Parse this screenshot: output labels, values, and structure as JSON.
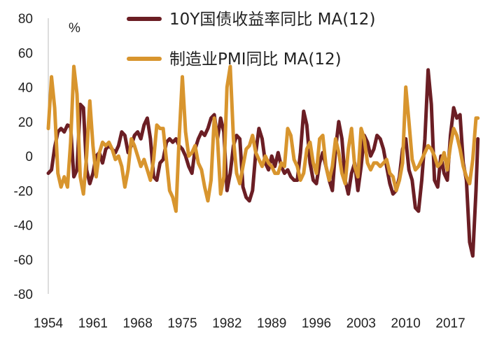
{
  "chart_data": {
    "type": "line",
    "unit": "%",
    "ylim": [
      -80,
      80
    ],
    "y_ticks": [
      80,
      60,
      40,
      20,
      0,
      -20,
      -40,
      -60,
      -80
    ],
    "xlim": [
      1954,
      2021
    ],
    "x_ticks": [
      "1954",
      "1961",
      "1968",
      "1975",
      "1982",
      "1989",
      "1996",
      "2003",
      "2010",
      "2017"
    ],
    "grid": false,
    "legend_position": "top",
    "series": [
      {
        "name": "10Y国债收益率同比 MA(12)",
        "color": "#6B1E24",
        "points": [
          [
            1954.0,
            -10
          ],
          [
            1954.5,
            -8
          ],
          [
            1955.0,
            5
          ],
          [
            1955.5,
            14
          ],
          [
            1956.0,
            16
          ],
          [
            1956.5,
            14
          ],
          [
            1957.0,
            18
          ],
          [
            1957.5,
            17
          ],
          [
            1958.0,
            -12
          ],
          [
            1958.5,
            -8
          ],
          [
            1959.0,
            30
          ],
          [
            1959.5,
            28
          ],
          [
            1960.0,
            -8
          ],
          [
            1960.5,
            -16
          ],
          [
            1961.0,
            -10
          ],
          [
            1961.5,
            0
          ],
          [
            1962.0,
            2
          ],
          [
            1962.5,
            -4
          ],
          [
            1963.0,
            4
          ],
          [
            1963.5,
            6
          ],
          [
            1964.0,
            4
          ],
          [
            1964.5,
            2
          ],
          [
            1965.0,
            6
          ],
          [
            1965.5,
            14
          ],
          [
            1966.0,
            12
          ],
          [
            1966.5,
            2
          ],
          [
            1967.0,
            6
          ],
          [
            1967.5,
            12
          ],
          [
            1968.0,
            14
          ],
          [
            1968.5,
            10
          ],
          [
            1969.0,
            18
          ],
          [
            1969.5,
            22
          ],
          [
            1970.0,
            10
          ],
          [
            1970.5,
            -12
          ],
          [
            1971.0,
            -14
          ],
          [
            1971.5,
            -4
          ],
          [
            1972.0,
            -2
          ],
          [
            1972.5,
            8
          ],
          [
            1973.0,
            10
          ],
          [
            1973.5,
            8
          ],
          [
            1974.0,
            10
          ],
          [
            1974.5,
            6
          ],
          [
            1975.0,
            4
          ],
          [
            1975.5,
            0
          ],
          [
            1976.0,
            -6
          ],
          [
            1976.5,
            -10
          ],
          [
            1977.0,
            4
          ],
          [
            1977.5,
            10
          ],
          [
            1978.0,
            14
          ],
          [
            1978.5,
            12
          ],
          [
            1979.0,
            16
          ],
          [
            1979.5,
            22
          ],
          [
            1980.0,
            24
          ],
          [
            1980.5,
            10
          ],
          [
            1981.0,
            22
          ],
          [
            1981.5,
            14
          ],
          [
            1982.0,
            -20
          ],
          [
            1982.5,
            -10
          ],
          [
            1983.0,
            6
          ],
          [
            1983.5,
            12
          ],
          [
            1984.0,
            10
          ],
          [
            1984.5,
            -18
          ],
          [
            1985.0,
            -24
          ],
          [
            1985.5,
            -26
          ],
          [
            1986.0,
            -20
          ],
          [
            1986.5,
            2
          ],
          [
            1987.0,
            16
          ],
          [
            1987.5,
            10
          ],
          [
            1988.0,
            -4
          ],
          [
            1988.5,
            -8
          ],
          [
            1989.0,
            0
          ],
          [
            1989.5,
            -6
          ],
          [
            1990.0,
            2
          ],
          [
            1990.5,
            -6
          ],
          [
            1991.0,
            -10
          ],
          [
            1991.5,
            -8
          ],
          [
            1992.0,
            -12
          ],
          [
            1992.5,
            -14
          ],
          [
            1993.0,
            -14
          ],
          [
            1993.5,
            2
          ],
          [
            1994.0,
            26
          ],
          [
            1994.5,
            18
          ],
          [
            1995.0,
            -4
          ],
          [
            1995.5,
            -14
          ],
          [
            1996.0,
            -16
          ],
          [
            1996.5,
            -4
          ],
          [
            1997.0,
            2
          ],
          [
            1997.5,
            -6
          ],
          [
            1998.0,
            -14
          ],
          [
            1998.5,
            -20
          ],
          [
            1999.0,
            4
          ],
          [
            1999.5,
            20
          ],
          [
            2000.0,
            10
          ],
          [
            2000.5,
            -14
          ],
          [
            2001.0,
            -22
          ],
          [
            2001.5,
            -10
          ],
          [
            2002.0,
            -4
          ],
          [
            2002.5,
            -20
          ],
          [
            2003.0,
            -6
          ],
          [
            2003.5,
            12
          ],
          [
            2004.0,
            8
          ],
          [
            2004.5,
            0
          ],
          [
            2005.0,
            4
          ],
          [
            2005.5,
            12
          ],
          [
            2006.0,
            10
          ],
          [
            2006.5,
            4
          ],
          [
            2007.0,
            -6
          ],
          [
            2007.5,
            -16
          ],
          [
            2008.0,
            -22
          ],
          [
            2008.5,
            -20
          ],
          [
            2009.0,
            -12
          ],
          [
            2009.5,
            4
          ],
          [
            2010.0,
            10
          ],
          [
            2010.5,
            -8
          ],
          [
            2011.0,
            -14
          ],
          [
            2011.5,
            -30
          ],
          [
            2012.0,
            -32
          ],
          [
            2012.5,
            -14
          ],
          [
            2013.0,
            10
          ],
          [
            2013.5,
            50
          ],
          [
            2014.0,
            30
          ],
          [
            2014.5,
            -14
          ],
          [
            2015.0,
            -18
          ],
          [
            2015.5,
            0
          ],
          [
            2016.0,
            -10
          ],
          [
            2016.5,
            -14
          ],
          [
            2017.0,
            12
          ],
          [
            2017.5,
            28
          ],
          [
            2018.0,
            22
          ],
          [
            2018.5,
            24
          ],
          [
            2019.0,
            -4
          ],
          [
            2019.5,
            -14
          ],
          [
            2020.0,
            -50
          ],
          [
            2020.5,
            -58
          ],
          [
            2021.0,
            -20
          ],
          [
            2021.3,
            10
          ]
        ]
      },
      {
        "name": "制造业PMI同比 MA(12)",
        "color": "#D8952E",
        "points": [
          [
            1954.0,
            16
          ],
          [
            1954.5,
            46
          ],
          [
            1955.0,
            28
          ],
          [
            1955.5,
            -10
          ],
          [
            1956.0,
            -18
          ],
          [
            1956.5,
            -12
          ],
          [
            1957.0,
            -18
          ],
          [
            1957.5,
            8
          ],
          [
            1958.0,
            52
          ],
          [
            1958.5,
            36
          ],
          [
            1959.0,
            -12
          ],
          [
            1959.5,
            -22
          ],
          [
            1960.0,
            0
          ],
          [
            1960.5,
            32
          ],
          [
            1961.0,
            6
          ],
          [
            1961.5,
            -12
          ],
          [
            1962.0,
            2
          ],
          [
            1962.5,
            8
          ],
          [
            1963.0,
            6
          ],
          [
            1963.5,
            8
          ],
          [
            1964.0,
            4
          ],
          [
            1964.5,
            -2
          ],
          [
            1965.0,
            0
          ],
          [
            1965.5,
            -6
          ],
          [
            1966.0,
            -18
          ],
          [
            1966.5,
            -8
          ],
          [
            1967.0,
            10
          ],
          [
            1967.5,
            6
          ],
          [
            1968.0,
            0
          ],
          [
            1968.5,
            -6
          ],
          [
            1969.0,
            -2
          ],
          [
            1969.5,
            -8
          ],
          [
            1970.0,
            -14
          ],
          [
            1970.5,
            -2
          ],
          [
            1971.0,
            18
          ],
          [
            1971.5,
            16
          ],
          [
            1972.0,
            16
          ],
          [
            1972.5,
            -2
          ],
          [
            1973.0,
            -20
          ],
          [
            1973.5,
            -24
          ],
          [
            1974.0,
            -32
          ],
          [
            1974.5,
            10
          ],
          [
            1975.0,
            46
          ],
          [
            1975.5,
            14
          ],
          [
            1976.0,
            0
          ],
          [
            1976.5,
            2
          ],
          [
            1977.0,
            6
          ],
          [
            1977.5,
            -4
          ],
          [
            1978.0,
            -8
          ],
          [
            1978.5,
            -18
          ],
          [
            1979.0,
            -26
          ],
          [
            1979.5,
            -14
          ],
          [
            1980.0,
            22
          ],
          [
            1980.5,
            10
          ],
          [
            1981.0,
            -22
          ],
          [
            1981.5,
            -12
          ],
          [
            1982.0,
            40
          ],
          [
            1982.5,
            52
          ],
          [
            1983.0,
            10
          ],
          [
            1983.5,
            -10
          ],
          [
            1984.0,
            -16
          ],
          [
            1984.5,
            -6
          ],
          [
            1985.0,
            4
          ],
          [
            1985.5,
            6
          ],
          [
            1986.0,
            12
          ],
          [
            1986.5,
            2
          ],
          [
            1987.0,
            -2
          ],
          [
            1987.5,
            -6
          ],
          [
            1988.0,
            0
          ],
          [
            1988.5,
            -4
          ],
          [
            1989.0,
            -6
          ],
          [
            1989.5,
            -10
          ],
          [
            1990.0,
            -10
          ],
          [
            1990.5,
            -4
          ],
          [
            1991.0,
            -6
          ],
          [
            1991.5,
            16
          ],
          [
            1992.0,
            12
          ],
          [
            1992.5,
            -2
          ],
          [
            1993.0,
            -6
          ],
          [
            1993.5,
            -14
          ],
          [
            1994.0,
            -10
          ],
          [
            1994.5,
            4
          ],
          [
            1995.0,
            8
          ],
          [
            1995.5,
            -4
          ],
          [
            1996.0,
            -10
          ],
          [
            1996.5,
            10
          ],
          [
            1997.0,
            12
          ],
          [
            1997.5,
            -6
          ],
          [
            1998.0,
            -14
          ],
          [
            1998.5,
            -6
          ],
          [
            1999.0,
            10
          ],
          [
            1999.5,
            2
          ],
          [
            2000.0,
            -10
          ],
          [
            2000.5,
            -16
          ],
          [
            2001.0,
            4
          ],
          [
            2001.5,
            16
          ],
          [
            2002.0,
            -6
          ],
          [
            2002.5,
            -12
          ],
          [
            2003.0,
            16
          ],
          [
            2003.5,
            10
          ],
          [
            2004.0,
            -4
          ],
          [
            2004.5,
            -8
          ],
          [
            2005.0,
            -4
          ],
          [
            2005.5,
            -4
          ],
          [
            2006.0,
            -6
          ],
          [
            2006.5,
            -4
          ],
          [
            2007.0,
            -2
          ],
          [
            2007.5,
            -10
          ],
          [
            2008.0,
            -12
          ],
          [
            2008.5,
            -20
          ],
          [
            2009.0,
            -14
          ],
          [
            2009.5,
            -4
          ],
          [
            2010.0,
            40
          ],
          [
            2010.5,
            20
          ],
          [
            2011.0,
            -2
          ],
          [
            2011.5,
            -8
          ],
          [
            2012.0,
            -6
          ],
          [
            2012.5,
            -2
          ],
          [
            2013.0,
            2
          ],
          [
            2013.5,
            6
          ],
          [
            2014.0,
            4
          ],
          [
            2014.5,
            0
          ],
          [
            2015.0,
            -6
          ],
          [
            2015.5,
            -4
          ],
          [
            2016.0,
            2
          ],
          [
            2016.5,
            -8
          ],
          [
            2017.0,
            6
          ],
          [
            2017.5,
            16
          ],
          [
            2018.0,
            12
          ],
          [
            2018.5,
            4
          ],
          [
            2019.0,
            -6
          ],
          [
            2019.5,
            -12
          ],
          [
            2020.0,
            -16
          ],
          [
            2020.5,
            -2
          ],
          [
            2021.0,
            22
          ],
          [
            2021.3,
            22
          ]
        ]
      }
    ]
  }
}
